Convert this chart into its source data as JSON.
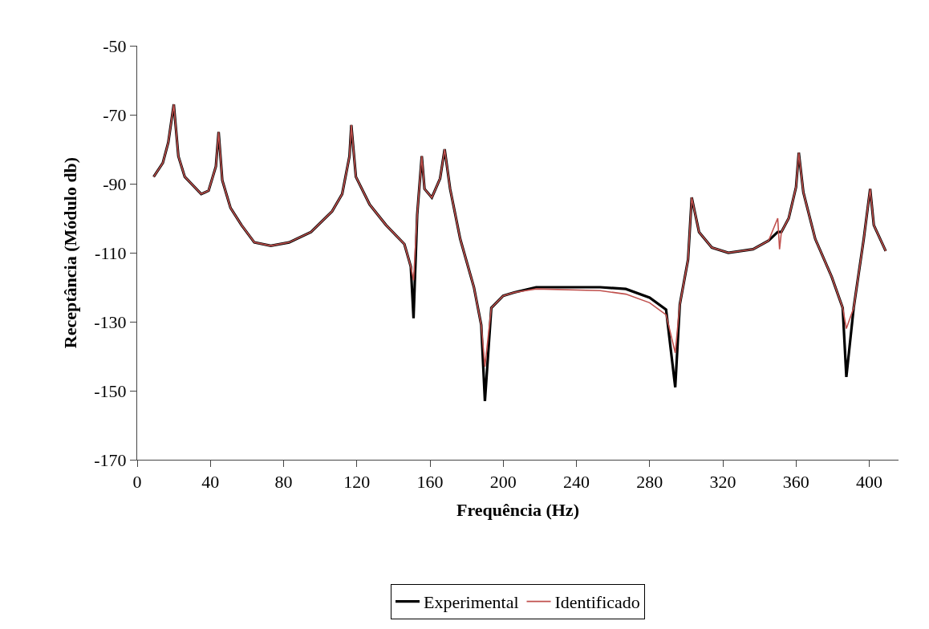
{
  "chart_data": {
    "type": "line",
    "xlabel": "Frequência (Hz)",
    "ylabel": "Receptância (Módulo db)",
    "x": [
      9,
      14,
      17,
      20,
      22.5,
      26,
      35,
      39,
      43,
      44.5,
      46.5,
      51,
      57,
      64,
      73,
      83,
      95,
      106.5,
      112,
      116,
      117,
      119.5,
      127,
      136,
      146,
      149.5,
      151,
      153,
      155.5,
      157,
      161,
      165.5,
      168,
      171,
      176.5,
      184,
      188,
      190,
      193.5,
      200,
      206,
      218,
      253,
      267,
      280,
      289,
      294,
      296.5,
      301,
      303,
      307,
      314,
      323,
      336.5,
      345,
      350,
      351,
      352,
      356,
      360,
      361.5,
      364,
      370.5,
      379.5,
      385.5,
      387.5,
      391.5,
      397,
      400.5,
      402.5,
      409
    ],
    "series": [
      {
        "name": "Experimental",
        "color": "#000000",
        "values": [
          -88,
          -84,
          -78,
          -67,
          -82,
          -88,
          -93,
          -92,
          -85,
          -75,
          -89,
          -97,
          -102,
          -107,
          -108,
          -107,
          -104,
          -98,
          -93,
          -82,
          -73,
          -88,
          -96,
          -102,
          -107.5,
          -114,
          -129,
          -99,
          -82,
          -91.5,
          -94,
          -88.5,
          -80,
          -91.5,
          -106,
          -120,
          -131,
          -153,
          -126,
          -122.5,
          -121.5,
          -120,
          -120,
          -120.5,
          -123,
          -126.5,
          -149,
          -125,
          -112,
          -94,
          -104,
          -108.5,
          -110,
          -109,
          -106.5,
          -104,
          -104,
          -104,
          -100,
          -91,
          -81,
          -92.5,
          -106,
          -117,
          -126,
          -146,
          -126,
          -106,
          -91.5,
          -102,
          -109.5
        ]
      },
      {
        "name": "Identificado",
        "color": "#c0504d",
        "values": [
          -88,
          -84,
          -78,
          -67,
          -82,
          -88,
          -93,
          -92,
          -85,
          -75,
          -89,
          -97,
          -102,
          -107,
          -108,
          -107,
          -104,
          -98,
          -93,
          -82,
          -73,
          -88,
          -96,
          -102,
          -107.5,
          -114,
          -118,
          -99,
          -82,
          -91.5,
          -94,
          -88.5,
          -80,
          -91.5,
          -106,
          -120,
          -131,
          -143,
          -126,
          -122.5,
          -121.5,
          -120.5,
          -121,
          -122,
          -124.5,
          -128,
          -139,
          -125,
          -112,
          -94,
          -104,
          -108.5,
          -110,
          -109,
          -106.5,
          -100,
          -109,
          -104,
          -100,
          -91,
          -81,
          -92.5,
          -106,
          -117,
          -126,
          -132,
          -126,
          -106,
          -91.5,
          -102,
          -109.5
        ]
      }
    ],
    "xlim": [
      0,
      416
    ],
    "xticks": [
      0,
      40,
      80,
      120,
      160,
      200,
      240,
      280,
      320,
      360,
      400
    ],
    "ylim": [
      -170,
      -50
    ],
    "yticks": [
      -50,
      -70,
      -90,
      -110,
      -130,
      -150,
      -170
    ],
    "legend": "bottom",
    "marker": "none",
    "line_style": "solid"
  }
}
